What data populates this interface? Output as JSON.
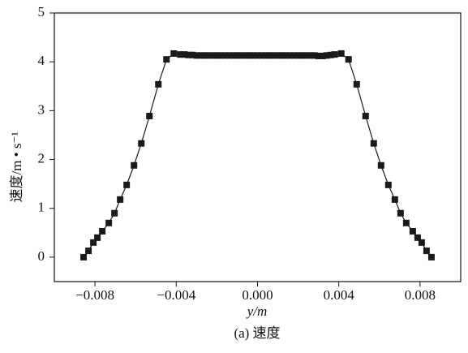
{
  "chart_data": {
    "type": "line",
    "xlabel": "y/m",
    "ylabel": "速度/m • s⁻¹",
    "caption": "(a) 速度",
    "xlim": [
      -0.01,
      0.01
    ],
    "ylim": [
      -0.5,
      5
    ],
    "xticks": [
      {
        "value": -0.008,
        "label": "−0.008"
      },
      {
        "value": -0.004,
        "label": "−0.004"
      },
      {
        "value": 0,
        "label": "0.000"
      },
      0.004,
      0.008
    ],
    "yticks": [
      0,
      1,
      2,
      3,
      4,
      5
    ],
    "series": [
      {
        "color": "#1a1a1a",
        "x": [
          -0.00856,
          -0.00832,
          -0.00808,
          -0.00788,
          -0.00764,
          -0.00732,
          -0.00704,
          -0.00676,
          -0.00644,
          -0.00608,
          -0.00572,
          -0.00532,
          -0.00488,
          -0.00448,
          -0.00412,
          -0.0038,
          -0.0036,
          -0.0034,
          -0.0032,
          -0.003,
          -0.0028,
          -0.0026,
          -0.0024,
          -0.0022,
          -0.002,
          -0.0018,
          -0.0016,
          -0.0014,
          -0.0012,
          -0.001,
          -0.0008,
          -0.0006,
          -0.0004,
          -0.0002,
          0,
          0.0002,
          0.0004,
          0.0006,
          0.0008,
          0.001,
          0.0012,
          0.0014,
          0.0016,
          0.0018,
          0.002,
          0.0022,
          0.0024,
          0.0026,
          0.0028,
          0.003,
          0.0032,
          0.0034,
          0.0036,
          0.0038,
          0.00412,
          0.00448,
          0.00488,
          0.00532,
          0.00572,
          0.00608,
          0.00644,
          0.00676,
          0.00704,
          0.00732,
          0.00764,
          0.00788,
          0.00808,
          0.00832,
          0.00856
        ],
        "values": [
          0,
          0.13,
          0.3,
          0.4,
          0.53,
          0.7,
          0.9,
          1.18,
          1.48,
          1.88,
          2.33,
          2.89,
          3.54,
          4.05,
          4.17,
          4.15,
          4.15,
          4.14,
          4.14,
          4.13,
          4.13,
          4.13,
          4.13,
          4.13,
          4.13,
          4.13,
          4.13,
          4.13,
          4.13,
          4.13,
          4.13,
          4.13,
          4.13,
          4.13,
          4.13,
          4.13,
          4.13,
          4.13,
          4.13,
          4.13,
          4.13,
          4.13,
          4.13,
          4.13,
          4.13,
          4.13,
          4.13,
          4.13,
          4.13,
          4.12,
          4.12,
          4.13,
          4.14,
          4.15,
          4.17,
          4.05,
          3.54,
          2.89,
          2.33,
          1.88,
          1.48,
          1.18,
          0.9,
          0.7,
          0.53,
          0.4,
          0.3,
          0.13,
          0
        ]
      }
    ]
  }
}
